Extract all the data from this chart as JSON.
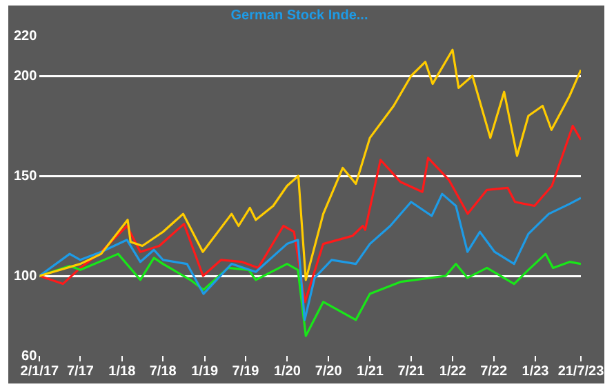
{
  "chart_data": {
    "type": "line",
    "xlim": [
      "2017-01-02",
      "2023-07-21"
    ],
    "xticks": [
      {
        "value": "2017-01-02",
        "label": "2/1/17"
      },
      {
        "value": "2017-07-01",
        "label": "7/17"
      },
      {
        "value": "2018-01-01",
        "label": "1/18"
      },
      {
        "value": "2018-07-01",
        "label": "7/18"
      },
      {
        "value": "2019-01-01",
        "label": "1/19"
      },
      {
        "value": "2019-07-01",
        "label": "7/19"
      },
      {
        "value": "2020-01-01",
        "label": "1/20"
      },
      {
        "value": "2020-07-01",
        "label": "7/20"
      },
      {
        "value": "2021-01-01",
        "label": "1/21"
      },
      {
        "value": "2021-07-01",
        "label": "7/21"
      },
      {
        "value": "2022-01-01",
        "label": "1/22"
      },
      {
        "value": "2022-07-01",
        "label": "7/22"
      },
      {
        "value": "2023-01-01",
        "label": "1/23"
      },
      {
        "value": "2023-07-21",
        "label": "21/7/23"
      }
    ],
    "ylim": [
      60,
      220
    ],
    "yticks": [
      60,
      100,
      150,
      200,
      220
    ],
    "grid": "y",
    "legend": "top",
    "marker": "none",
    "line_style": "solid",
    "series": [
      {
        "color": "#ffcc00",
        "x": [
          "2017-01-02",
          "2017-07-01",
          "2017-10-01",
          "2018-01-26",
          "2018-02-08",
          "2018-04-01",
          "2018-07-01",
          "2018-09-28",
          "2018-12-24",
          "2019-04-30",
          "2019-05-31",
          "2019-07-20",
          "2019-08-15",
          "2019-10-31",
          "2019-12-31",
          "2020-02-19",
          "2020-03-23",
          "2020-06-08",
          "2020-09-02",
          "2020-10-30",
          "2020-12-31",
          "2021-04-15",
          "2021-07-01",
          "2021-09-02",
          "2021-10-04",
          "2021-12-31",
          "2022-01-27",
          "2022-03-29",
          "2022-06-16",
          "2022-08-16",
          "2022-10-12",
          "2022-12-01",
          "2023-02-02",
          "2023-03-13",
          "2023-06-01",
          "2023-07-21"
        ],
        "values": [
          100,
          106,
          111,
          128,
          117,
          115,
          122,
          131,
          112,
          131,
          125,
          134,
          128,
          135,
          145,
          150,
          98,
          131,
          154,
          146,
          169,
          185,
          200,
          207,
          196,
          213,
          194,
          200,
          169,
          192,
          160,
          180,
          185,
          173,
          190,
          203
        ]
      },
      {
        "name": "German Stock Inde...",
        "color": "#1e9be6",
        "x": [
          "2017-01-02",
          "2017-05-15",
          "2017-07-01",
          "2017-10-01",
          "2018-01-23",
          "2018-03-23",
          "2018-05-22",
          "2018-07-01",
          "2018-10-15",
          "2018-12-27",
          "2019-04-30",
          "2019-08-15",
          "2019-12-31",
          "2020-02-17",
          "2020-03-18",
          "2020-05-01",
          "2020-07-15",
          "2020-10-30",
          "2020-12-31",
          "2021-03-31",
          "2021-07-01",
          "2021-09-30",
          "2021-11-15",
          "2022-01-15",
          "2022-03-07",
          "2022-05-01",
          "2022-07-05",
          "2022-09-29",
          "2022-12-01",
          "2023-03-01",
          "2023-06-01",
          "2023-07-21"
        ],
        "values": [
          100,
          111,
          108,
          112,
          118,
          107,
          113,
          108,
          106,
          91,
          106,
          102,
          116,
          118,
          78,
          99,
          108,
          106,
          116,
          125,
          137,
          130,
          141,
          135,
          112,
          122,
          112,
          106,
          121,
          131,
          136,
          139
        ]
      },
      {
        "color": "#19e619",
        "x": [
          "2017-01-02",
          "2017-05-15",
          "2017-07-01",
          "2017-12-15",
          "2018-03-23",
          "2018-05-22",
          "2018-07-01",
          "2018-10-30",
          "2018-12-27",
          "2019-04-15",
          "2019-07-15",
          "2019-08-15",
          "2019-12-31",
          "2020-02-17",
          "2020-03-23",
          "2020-06-08",
          "2020-10-30",
          "2020-12-31",
          "2021-05-15",
          "2021-12-01",
          "2022-01-15",
          "2022-03-07",
          "2022-06-01",
          "2022-09-29",
          "2022-12-01",
          "2023-02-15",
          "2023-03-20",
          "2023-06-01",
          "2023-07-21"
        ],
        "values": [
          100,
          105,
          103,
          111,
          98,
          109,
          106,
          98,
          93,
          104,
          103,
          98,
          106,
          103,
          70,
          87,
          78,
          91,
          97,
          100,
          106,
          99,
          104,
          96,
          103,
          111,
          104,
          107,
          106
        ]
      },
      {
        "color": "#ff1a1a",
        "x": [
          "2017-01-02",
          "2017-04-15",
          "2017-07-01",
          "2017-10-01",
          "2018-01-23",
          "2018-03-23",
          "2018-06-15",
          "2018-10-02",
          "2018-12-25",
          "2019-03-15",
          "2019-06-15",
          "2019-08-26",
          "2019-12-15",
          "2020-01-31",
          "2020-03-19",
          "2020-06-08",
          "2020-10-15",
          "2020-11-30",
          "2020-12-10",
          "2021-02-16",
          "2021-05-15",
          "2021-08-20",
          "2021-09-14",
          "2021-12-15",
          "2022-03-08",
          "2022-06-01",
          "2022-09-01",
          "2022-10-03",
          "2022-12-28",
          "2023-03-15",
          "2023-06-15",
          "2023-07-21"
        ],
        "values": [
          100,
          96,
          104,
          112,
          125,
          112,
          115,
          126,
          100,
          108,
          107,
          104,
          125,
          122,
          87,
          116,
          120,
          125,
          123,
          158,
          147,
          142,
          159,
          148,
          131,
          143,
          144,
          137,
          135,
          145,
          175,
          168
        ]
      }
    ]
  }
}
